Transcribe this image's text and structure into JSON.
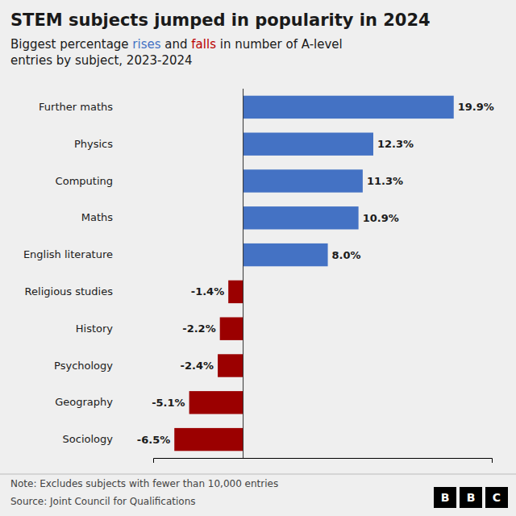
{
  "chart_data": {
    "type": "bar",
    "orientation": "horizontal",
    "title": "STEM subjects jumped in popularity in 2024",
    "subtitle": [
      {
        "text": "Biggest percentage ",
        "color": "#1a1a1a"
      },
      {
        "text": "rises",
        "color": "#4472c4"
      },
      {
        "text": " and ",
        "color": "#1a1a1a"
      },
      {
        "text": "falls",
        "color": "#bb0000"
      },
      {
        "text": " in number of A-level",
        "color": "#1a1a1a"
      }
    ],
    "subtitle_line2": "entries by subject, 2023-2024",
    "categories": [
      "Further maths",
      "Physics",
      "Computing",
      "Maths",
      "English literature",
      "Religious studies",
      "History",
      "Psychology",
      "Geography",
      "Sociology"
    ],
    "values": [
      19.9,
      12.3,
      11.3,
      10.9,
      8.0,
      -1.4,
      -2.2,
      -2.4,
      -5.1,
      -6.5
    ],
    "value_labels": [
      "19.9%",
      "12.3%",
      "11.3%",
      "10.9%",
      "8.0%",
      "-1.4%",
      "-2.2%",
      "-2.4%",
      "-5.1%",
      "-6.5%"
    ],
    "data_labels": true,
    "colors": [
      "#4472c4",
      "#4472c4",
      "#4472c4",
      "#4472c4",
      "#4472c4",
      "#9b0000",
      "#9b0000",
      "#9b0000",
      "#9b0000",
      "#9b0000"
    ],
    "xlim": [
      -8.5,
      23.5
    ],
    "xticks": [],
    "tick_labels": "y",
    "grid": false,
    "note": "Note: Excludes subjects with fewer than 10,000 entries",
    "source": "Source: Joint Council for Qualifications",
    "logo": [
      "B",
      "B",
      "C"
    ]
  }
}
